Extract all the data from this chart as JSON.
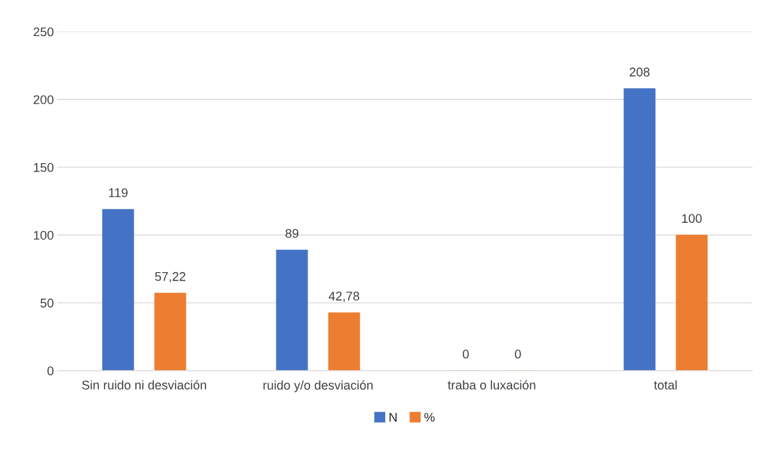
{
  "chart_data": {
    "type": "bar",
    "categories": [
      "Sin ruido ni desviación",
      "ruido y/o desviación",
      "traba o luxación",
      "total"
    ],
    "series": [
      {
        "name": "N",
        "color": "#4472c4",
        "values": [
          119,
          89,
          0,
          208
        ],
        "value_labels": [
          "119",
          "89",
          "0",
          "208"
        ]
      },
      {
        "name": "%",
        "color": "#ed7d31",
        "values": [
          57.22,
          42.78,
          0,
          100
        ],
        "value_labels": [
          "57,22",
          "42,78",
          "0",
          "100"
        ]
      }
    ],
    "ylim": [
      0,
      250
    ],
    "yticks": [
      0,
      50,
      100,
      150,
      200,
      250
    ],
    "grid": "y",
    "legend": "bottom"
  }
}
